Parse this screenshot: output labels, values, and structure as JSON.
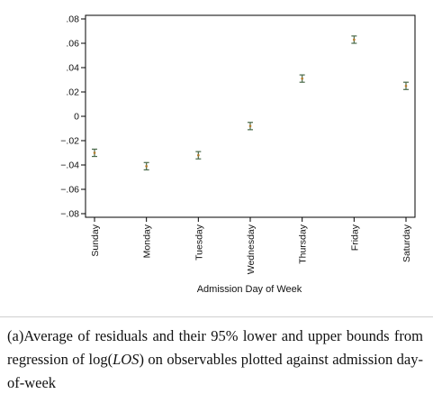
{
  "chart_data": {
    "type": "scatter",
    "subtype": "error-bar",
    "title": "",
    "xlabel": "Admission Day of Week",
    "ylabel": "",
    "categories": [
      "Sunday",
      "Monday",
      "Tuesday",
      "Wednesday",
      "Thursday",
      "Friday",
      "Saturday"
    ],
    "series": [
      {
        "values": [
          -0.03,
          -0.041,
          -0.032,
          -0.008,
          0.031,
          0.063,
          0.025
        ],
        "lower": [
          -0.033,
          -0.044,
          -0.035,
          -0.011,
          0.028,
          0.06,
          0.022
        ],
        "upper": [
          -0.027,
          -0.038,
          -0.029,
          -0.005,
          0.034,
          0.066,
          0.028
        ]
      }
    ],
    "ylim": [
      -0.08,
      0.08
    ],
    "yticks": [
      -0.08,
      -0.06,
      -0.04,
      -0.02,
      0,
      0.02,
      0.04,
      0.06,
      0.08
    ],
    "ytick_labels": [
      "−.08",
      "−.06",
      "−.04",
      "−.02",
      "0",
      ".02",
      ".04",
      ".06",
      ".08"
    ],
    "grid": false,
    "colors": {
      "bar": "#4a6a4a",
      "marker": "#b57a2a"
    }
  },
  "caption": {
    "prefix": "(a)Average of residuals and their 95% lower and upper bounds from regression of log(",
    "math": "LOS",
    "suffix": ") on observables plotted against admission day-of-week"
  }
}
